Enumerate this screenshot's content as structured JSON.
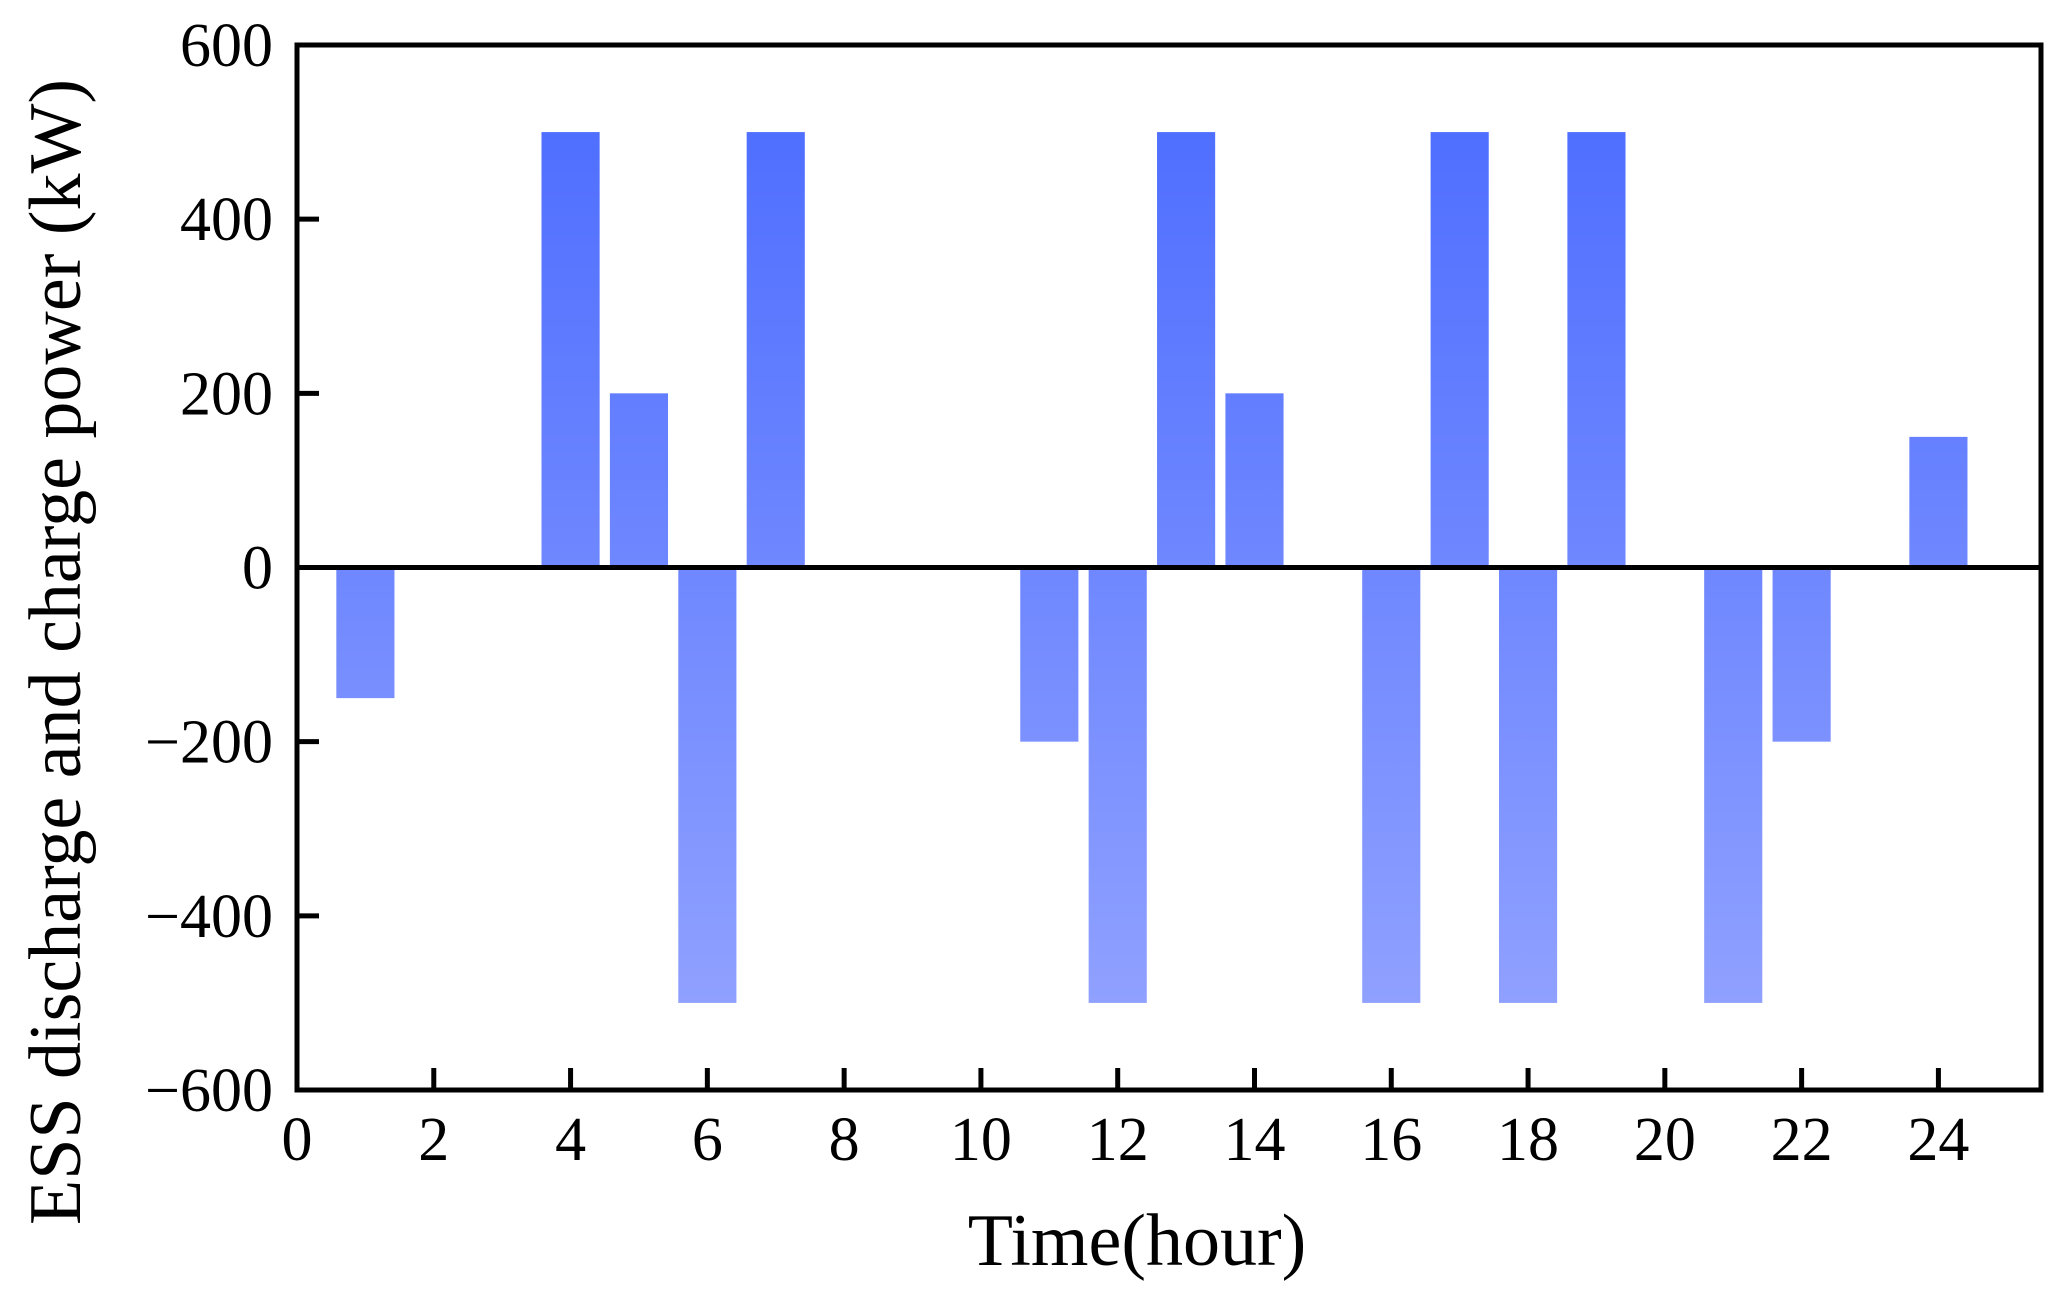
{
  "chart_data": {
    "type": "bar",
    "title": "",
    "xlabel": "Time(hour)",
    "ylabel": "ESS discharge and charge power (kW)",
    "xlim": [
      0,
      25.5
    ],
    "ylim": [
      -600,
      600
    ],
    "xticks": [
      0,
      2,
      4,
      6,
      8,
      10,
      12,
      14,
      16,
      18,
      20,
      22,
      24
    ],
    "yticks": [
      -600,
      -400,
      -200,
      0,
      200,
      400,
      600
    ],
    "xtick_labels": [
      "0",
      "2",
      "4",
      "6",
      "8",
      "10",
      "12",
      "14",
      "16",
      "18",
      "20",
      "22",
      "24"
    ],
    "ytick_labels": [
      "−600",
      "−400",
      "−200",
      "0",
      "200",
      "400",
      "600"
    ],
    "grid": false,
    "legend": false,
    "zero_line": true,
    "bar_width": 0.85,
    "colors": {
      "bar_top": "#4f6fff",
      "bar_bottom": "#8fa0ff",
      "axis": "#000000"
    },
    "x": [
      1,
      2,
      3,
      4,
      5,
      6,
      7,
      8,
      9,
      10,
      11,
      12,
      13,
      14,
      15,
      16,
      17,
      18,
      19,
      20,
      21,
      22,
      23,
      24
    ],
    "values": [
      -150,
      0,
      0,
      500,
      200,
      -500,
      500,
      0,
      0,
      0,
      -200,
      -500,
      500,
      200,
      0,
      -500,
      500,
      -500,
      500,
      0,
      -500,
      -200,
      0,
      150
    ]
  }
}
